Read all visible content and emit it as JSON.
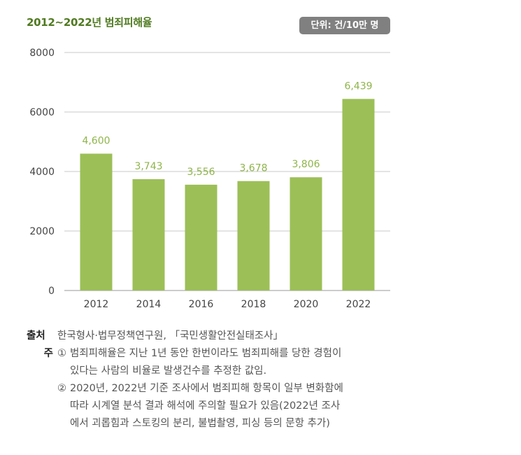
{
  "title": "2012~2022년 범죄피해율",
  "unit_badge": "단위: 건/10만 명",
  "chart_data": {
    "type": "bar",
    "categories": [
      "2012",
      "2014",
      "2016",
      "2018",
      "2020",
      "2022"
    ],
    "values": [
      4600,
      3743,
      3556,
      3678,
      3806,
      6439
    ],
    "value_labels": [
      "4,600",
      "3,743",
      "3,556",
      "3,678",
      "3,806",
      "6,439"
    ],
    "y_ticks": [
      "0",
      "2000",
      "4000",
      "6000",
      "8000"
    ],
    "ylim": [
      0,
      8000
    ],
    "grid": true,
    "bar_color": "#9cbf57",
    "label_color": "#8fb54a"
  },
  "source": {
    "label": "출처",
    "text": "한국형사·법무정책연구원, 「국민생활안전실태조사」"
  },
  "footnotes": {
    "label": "주",
    "note1_num": "①",
    "note1_line1": "범죄피해율은 지난 1년 동안 한번이라도 범죄피해를 당한 경험이",
    "note1_line2": "있다는 사람의 비율로 발생건수를 추정한 값임.",
    "note2_num": "②",
    "note2_line1": "2020년, 2022년 기준 조사에서 범죄피해 항목이 일부 변화함에",
    "note2_line2": "따라 시계열 분석 결과 해석에 주의할 필요가 있음(2022년 조사",
    "note2_line3": "에서 괴롭힘과 스토킹의 분리, 불법촬영, 피싱 등의 문항 추가)"
  }
}
